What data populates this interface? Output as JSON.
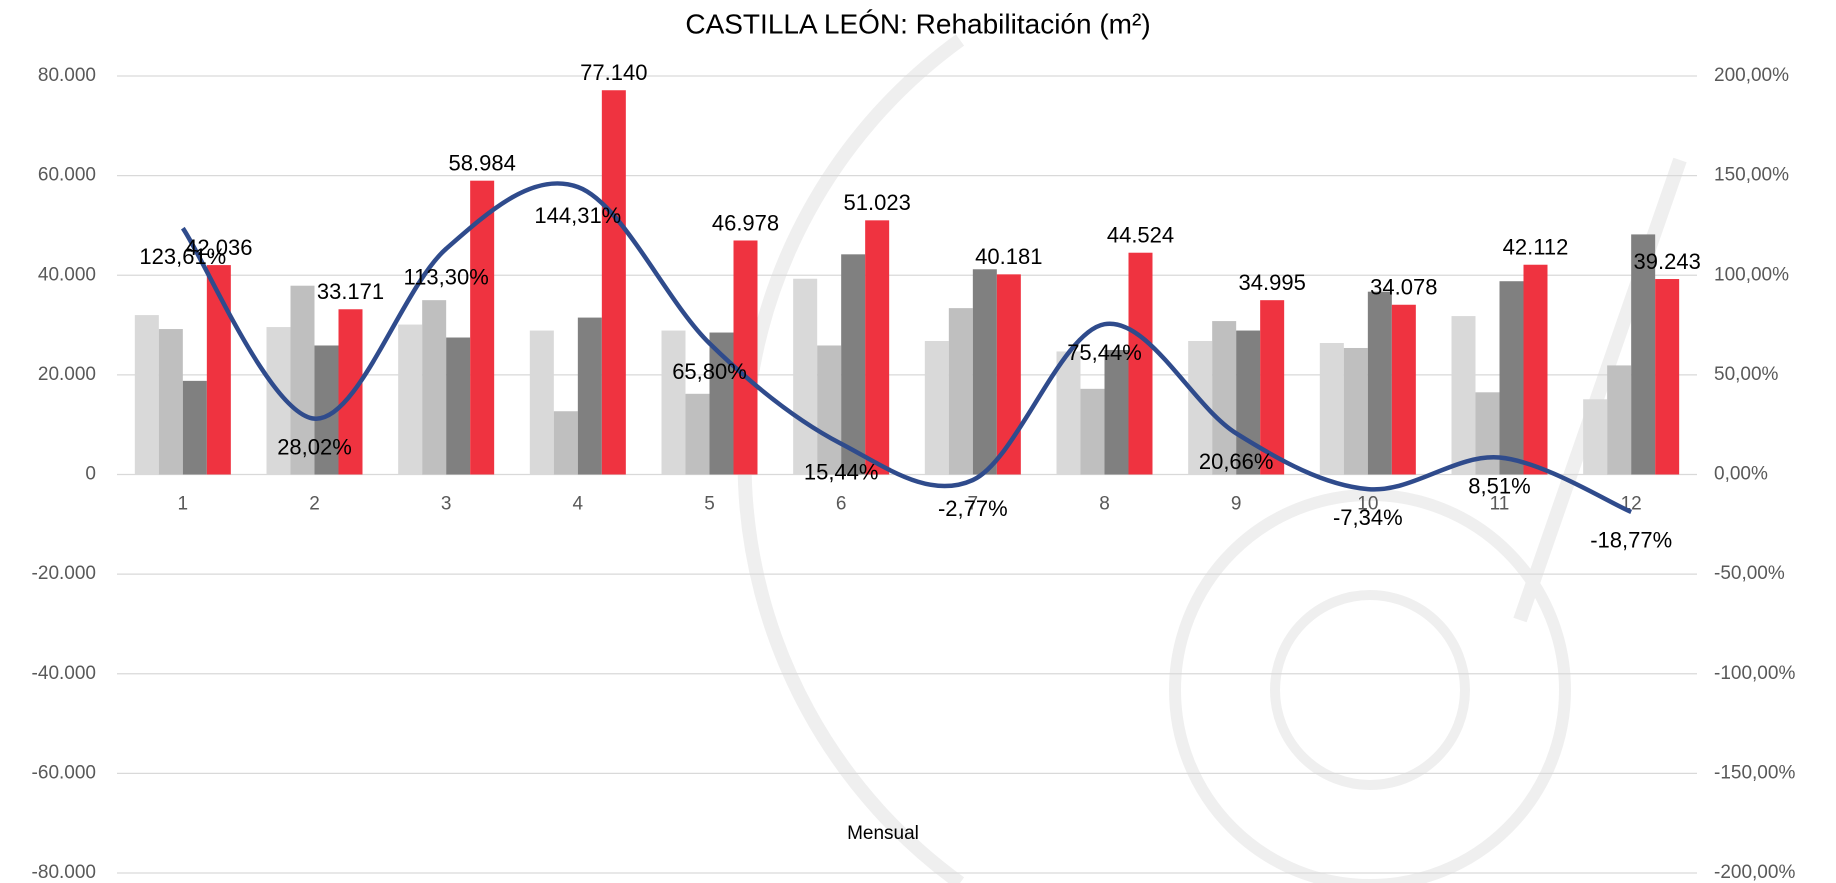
{
  "chart_data": {
    "type": "bar",
    "title": "CASTILLA LEÓN: Rehabilitación (m²)",
    "x_label": "Mensual",
    "categories": [
      "1",
      "2",
      "3",
      "4",
      "5",
      "6",
      "7",
      "8",
      "9",
      "10",
      "11",
      "12"
    ],
    "series": [
      {
        "color": "#d9d9d9",
        "values": [
          32000,
          29600,
          30100,
          28900,
          28900,
          39300,
          26800,
          24700,
          26800,
          26400,
          31800,
          15100
        ]
      },
      {
        "color": "#bfbfbf",
        "values": [
          29200,
          37900,
          35000,
          12700,
          16200,
          25900,
          33400,
          17200,
          30800,
          25400,
          16500,
          21900
        ]
      },
      {
        "color": "#808080",
        "values": [
          18800,
          25900,
          27500,
          31500,
          28500,
          44200,
          41200,
          25000,
          28900,
          36700,
          38800,
          48200
        ]
      },
      {
        "color": "#ef3340",
        "values": [
          42036,
          33171,
          58984,
          77140,
          46978,
          51023,
          40181,
          44524,
          34995,
          34078,
          42112,
          39243
        ],
        "value_labels": [
          "42.036",
          "33.171",
          "58.984",
          "77.140",
          "46.978",
          "51.023",
          "40.181",
          "44.524",
          "34.995",
          "34.078",
          "42.112",
          "39.243"
        ]
      },
      {
        "type": "line",
        "axis": "y2",
        "color": "#2f4b8c",
        "smooth": true,
        "values": [
          123.61,
          28.02,
          113.3,
          144.31,
          65.8,
          15.44,
          -2.77,
          75.44,
          20.66,
          -7.34,
          8.51,
          -18.77
        ],
        "value_labels": [
          "123,61%",
          "28,02%",
          "113,30%",
          "144,31%",
          "65,80%",
          "15,44%",
          "-2,77%",
          "75,44%",
          "20,66%",
          "-7,34%",
          "8,51%",
          "-18,77%"
        ]
      }
    ],
    "ylim": [
      -80000,
      80000
    ],
    "yticks": [
      {
        "value": -80000,
        "label": "-80.000"
      },
      {
        "value": -60000,
        "label": "-60.000"
      },
      {
        "value": -40000,
        "label": "-40.000"
      },
      {
        "value": -20000,
        "label": "-20.000"
      },
      0,
      {
        "value": 20000,
        "label": "20.000"
      },
      {
        "value": 40000,
        "label": "40.000"
      },
      {
        "value": 60000,
        "label": "60.000"
      },
      {
        "value": 80000,
        "label": "80.000"
      }
    ],
    "y2lim": [
      -200,
      200
    ],
    "y2ticks": [
      {
        "value": -200,
        "label": "-200,00%"
      },
      {
        "value": -150,
        "label": "-150,00%"
      },
      {
        "value": -100,
        "label": "-100,00%"
      },
      {
        "value": -50,
        "label": "-50,00%"
      },
      {
        "value": 0,
        "label": "0,00%"
      },
      {
        "value": 50,
        "label": "50,00%"
      },
      {
        "value": 100,
        "label": "100,00%"
      },
      {
        "value": 150,
        "label": "150,00%"
      },
      {
        "value": 200,
        "label": "200,00%"
      }
    ],
    "grid": true
  }
}
